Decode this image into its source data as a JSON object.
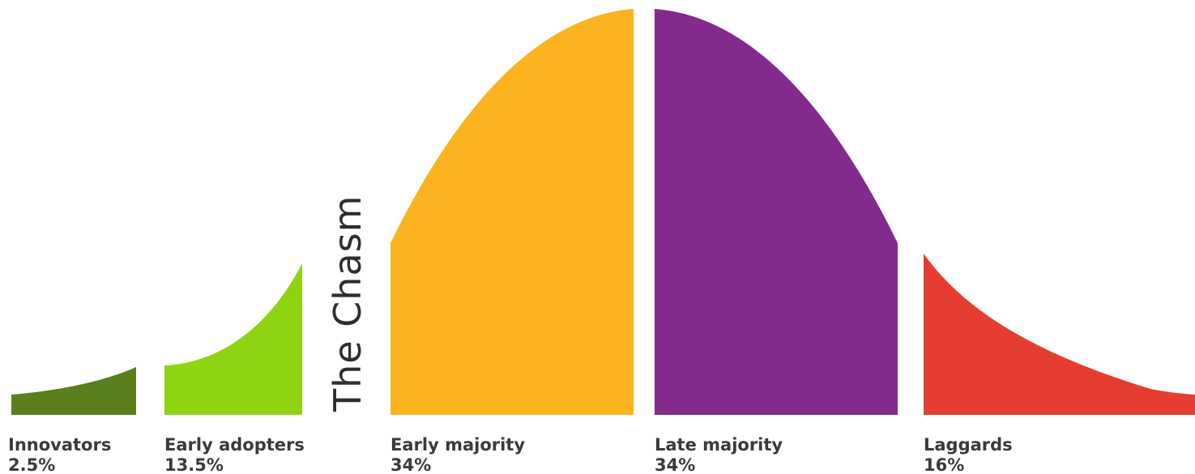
{
  "chasm": {
    "label": "The Chasm"
  },
  "segments": [
    {
      "id": "innovators",
      "label": "Innovators",
      "share": "2.5%",
      "color": "#5a7f1c"
    },
    {
      "id": "early-adopters",
      "label": "Early adopters",
      "share": "13.5%",
      "color": "#8fd412"
    },
    {
      "id": "early-majority",
      "label": "Early majority",
      "share": "34%",
      "color": "#fbb41f"
    },
    {
      "id": "late-majority",
      "label": "Late majority",
      "share": "34%",
      "color": "#84298e"
    },
    {
      "id": "laggards",
      "label": "Laggards",
      "share": "16%",
      "color": "#e53d2f"
    }
  ]
}
